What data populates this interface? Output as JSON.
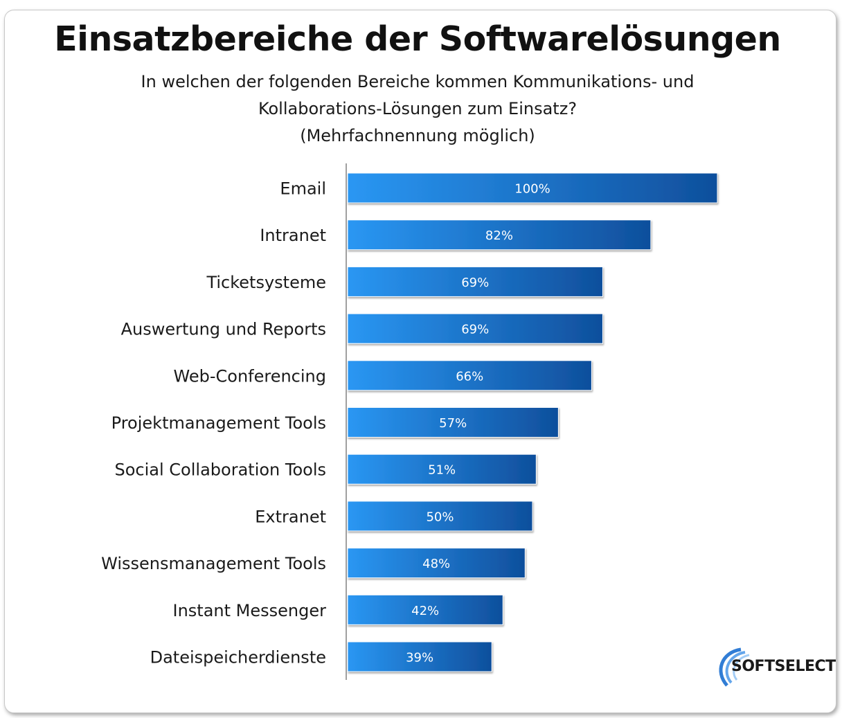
{
  "title": "Einsatzbereiche der Softwarelösungen",
  "subtitle_lines": [
    "In welchen der folgenden Bereiche kommen Kommunikations- und",
    "Kollaborations-Lösungen zum Einsatz?",
    "(Mehrfachnennung möglich)"
  ],
  "logo_text": "SOFTSELECT",
  "chart_data": {
    "type": "bar",
    "orientation": "horizontal",
    "categories": [
      "Email",
      "Intranet",
      "Ticketsysteme",
      "Auswertung und Reports",
      "Web-Conferencing",
      "Projektmanagement Tools",
      "Social Collaboration  Tools",
      "Extranet",
      "Wissensmanagement Tools",
      "Instant Messenger",
      "Dateispeicherdienste"
    ],
    "values": [
      100,
      82,
      69,
      69,
      66,
      57,
      51,
      50,
      48,
      42,
      39
    ],
    "value_labels": [
      "100%",
      "82%",
      "69%",
      "69%",
      "66%",
      "57%",
      "51%",
      "50%",
      "48%",
      "42%",
      "39%"
    ],
    "xlim": [
      0,
      100
    ],
    "grid": false,
    "legend": false,
    "colors": {
      "bar_start": "#2a97f3",
      "bar_end": "#0f4f9c",
      "axis": "#808080"
    }
  }
}
